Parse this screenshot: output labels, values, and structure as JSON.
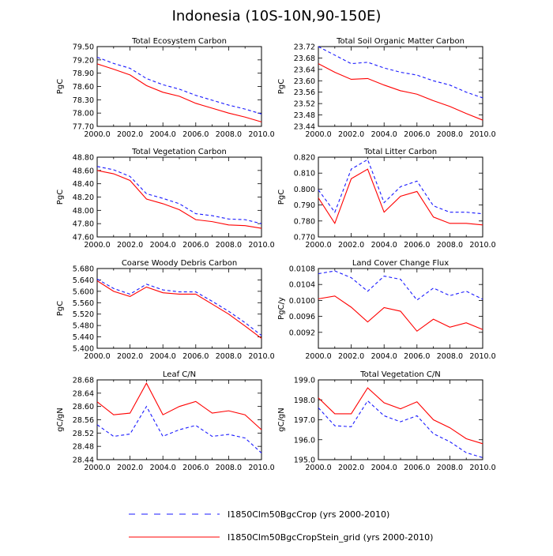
{
  "main_title": "Indonesia (10S-10N,90-150E)",
  "legend": [
    {
      "label": "I1850Clm50BgcCrop (yrs 2000-2010)",
      "color": "#1a1aff",
      "style": "dashed"
    },
    {
      "label": "I1850Clm50BgcCropStein_grid (yrs 2000-2010)",
      "color": "#ff0000",
      "style": "solid"
    }
  ],
  "chart_data": [
    {
      "type": "line",
      "title": "Total Ecosystem Carbon",
      "ylabel": "PgC",
      "x": [
        2000,
        2001,
        2002,
        2003,
        2004,
        2005,
        2006,
        2007,
        2008,
        2009,
        2010
      ],
      "xticks": [
        "2000.0",
        "2002.0",
        "2004.0",
        "2006.0",
        "2008.0",
        "2010.0"
      ],
      "ylim": [
        77.7,
        79.5
      ],
      "yticks": [
        "77.70",
        "78.00",
        "78.30",
        "78.60",
        "78.90",
        "79.20",
        "79.50"
      ],
      "series": [
        {
          "name": "I1850Clm50BgcCrop (yrs 2000-2010)",
          "color": "#1a1aff",
          "dash": true,
          "values": [
            79.26,
            79.12,
            79.01,
            78.78,
            78.64,
            78.54,
            78.4,
            78.29,
            78.18,
            78.09,
            77.98
          ]
        },
        {
          "name": "I1850Clm50BgcCropStein_grid (yrs 2000-2010)",
          "color": "#ff0000",
          "dash": false,
          "values": [
            79.11,
            78.99,
            78.86,
            78.62,
            78.47,
            78.38,
            78.22,
            78.11,
            78.0,
            77.91,
            77.8
          ]
        }
      ]
    },
    {
      "type": "line",
      "title": "Total Soil Organic Matter Carbon",
      "ylabel": "PgC",
      "x": [
        2000,
        2001,
        2002,
        2003,
        2004,
        2005,
        2006,
        2007,
        2008,
        2009,
        2010
      ],
      "xticks": [
        "2000.0",
        "2002.0",
        "2004.0",
        "2006.0",
        "2008.0",
        "2010.0"
      ],
      "ylim": [
        23.44,
        23.72
      ],
      "yticks": [
        "23.44",
        "23.48",
        "23.52",
        "23.56",
        "23.60",
        "23.64",
        "23.68",
        "23.72"
      ],
      "series": [
        {
          "name": "I1850Clm50BgcCrop (yrs 2000-2010)",
          "color": "#1a1aff",
          "dash": true,
          "values": [
            23.72,
            23.69,
            23.66,
            23.665,
            23.645,
            23.63,
            23.62,
            23.6,
            23.585,
            23.56,
            23.54
          ]
        },
        {
          "name": "I1850Clm50BgcCropStein_grid (yrs 2000-2010)",
          "color": "#ff0000",
          "dash": false,
          "values": [
            23.66,
            23.63,
            23.605,
            23.608,
            23.585,
            23.565,
            23.553,
            23.53,
            23.51,
            23.485,
            23.462
          ]
        }
      ]
    },
    {
      "type": "line",
      "title": "Total Vegetation Carbon",
      "ylabel": "PgC",
      "x": [
        2000,
        2001,
        2002,
        2003,
        2004,
        2005,
        2006,
        2007,
        2008,
        2009,
        2010
      ],
      "xticks": [
        "2000.0",
        "2002.0",
        "2004.0",
        "2006.0",
        "2008.0",
        "2010.0"
      ],
      "ylim": [
        47.6,
        48.8
      ],
      "yticks": [
        "47.60",
        "47.80",
        "48.00",
        "48.20",
        "48.40",
        "48.60",
        "48.80"
      ],
      "series": [
        {
          "name": "I1850Clm50BgcCrop (yrs 2000-2010)",
          "color": "#1a1aff",
          "dash": true,
          "values": [
            48.66,
            48.61,
            48.51,
            48.25,
            48.18,
            48.1,
            47.95,
            47.92,
            47.87,
            47.86,
            47.8
          ]
        },
        {
          "name": "I1850Clm50BgcCropStein_grid (yrs 2000-2010)",
          "color": "#ff0000",
          "dash": false,
          "values": [
            48.6,
            48.55,
            48.45,
            48.17,
            48.1,
            48.01,
            47.86,
            47.83,
            47.78,
            47.77,
            47.73
          ]
        }
      ]
    },
    {
      "type": "line",
      "title": "Total Litter Carbon",
      "ylabel": "PgC",
      "x": [
        2000,
        2001,
        2002,
        2003,
        2004,
        2005,
        2006,
        2007,
        2008,
        2009,
        2010
      ],
      "xticks": [
        "2000.0",
        "2002.0",
        "2004.0",
        "2006.0",
        "2008.0",
        "2010.0"
      ],
      "ylim": [
        0.77,
        0.82
      ],
      "yticks": [
        "0.770",
        "0.780",
        "0.790",
        "0.800",
        "0.810",
        "0.820"
      ],
      "series": [
        {
          "name": "I1850Clm50BgcCrop (yrs 2000-2010)",
          "color": "#1a1aff",
          "dash": true,
          "values": [
            0.7995,
            0.7855,
            0.8125,
            0.8185,
            0.7915,
            0.8015,
            0.805,
            0.7895,
            0.7855,
            0.7855,
            0.7845
          ]
        },
        {
          "name": "I1850Clm50BgcCropStein_grid (yrs 2000-2010)",
          "color": "#ff0000",
          "dash": false,
          "values": [
            0.7945,
            0.7785,
            0.8065,
            0.8125,
            0.7855,
            0.7955,
            0.7985,
            0.7825,
            0.7785,
            0.7785,
            0.7775
          ]
        }
      ]
    },
    {
      "type": "line",
      "title": "Coarse Woody Debris Carbon",
      "ylabel": "PgC",
      "x": [
        2000,
        2001,
        2002,
        2003,
        2004,
        2005,
        2006,
        2007,
        2008,
        2009,
        2010
      ],
      "xticks": [
        "2000.0",
        "2002.0",
        "2004.0",
        "2006.0",
        "2008.0",
        "2010.0"
      ],
      "ylim": [
        5.4,
        5.68
      ],
      "yticks": [
        "5.400",
        "5.440",
        "5.480",
        "5.520",
        "5.560",
        "5.600",
        "5.640",
        "5.680"
      ],
      "series": [
        {
          "name": "I1850Clm50BgcCrop (yrs 2000-2010)",
          "color": "#1a1aff",
          "dash": true,
          "values": [
            5.643,
            5.61,
            5.59,
            5.625,
            5.605,
            5.598,
            5.598,
            5.565,
            5.53,
            5.49,
            5.445
          ]
        },
        {
          "name": "I1850Clm50BgcCropStein_grid (yrs 2000-2010)",
          "color": "#ff0000",
          "dash": false,
          "values": [
            5.637,
            5.6,
            5.582,
            5.615,
            5.595,
            5.59,
            5.59,
            5.555,
            5.52,
            5.478,
            5.435
          ]
        }
      ]
    },
    {
      "type": "line",
      "title": "Land Cover Change Flux",
      "ylabel": "PgC/y",
      "x": [
        2000,
        2001,
        2002,
        2003,
        2004,
        2005,
        2006,
        2007,
        2008,
        2009,
        2010
      ],
      "xticks": [
        "2000.0",
        "2002.0",
        "2004.0",
        "2006.0",
        "2008.0",
        "2010.0"
      ],
      "ylim": [
        0.0088,
        0.0108
      ],
      "yticks": [
        "0.0092",
        "0.0096",
        "0.0100",
        "0.0104",
        "0.0108"
      ],
      "series": [
        {
          "name": "I1850Clm50BgcCrop (yrs 2000-2010)",
          "color": "#1a1aff",
          "dash": true,
          "values": [
            0.01067,
            0.01074,
            0.01057,
            0.01023,
            0.01061,
            0.01053,
            0.01001,
            0.01031,
            0.01012,
            0.01023,
            0.01003
          ]
        },
        {
          "name": "I1850Clm50BgcCropStein_grid (yrs 2000-2010)",
          "color": "#ff0000",
          "dash": false,
          "values": [
            0.01004,
            0.01011,
            0.00983,
            0.00946,
            0.00982,
            0.00973,
            0.00923,
            0.00953,
            0.00933,
            0.00944,
            0.00927
          ]
        }
      ]
    },
    {
      "type": "line",
      "title": "Leaf C/N",
      "ylabel": "gC/gN",
      "x": [
        2000,
        2001,
        2002,
        2003,
        2004,
        2005,
        2006,
        2007,
        2008,
        2009,
        2010
      ],
      "xticks": [
        "2000.0",
        "2002.0",
        "2004.0",
        "2006.0",
        "2008.0",
        "2010.0"
      ],
      "ylim": [
        28.44,
        28.68
      ],
      "yticks": [
        "28.44",
        "28.48",
        "28.52",
        "28.56",
        "28.60",
        "28.64",
        "28.68"
      ],
      "series": [
        {
          "name": "I1850Clm50BgcCrop (yrs 2000-2010)",
          "color": "#1a1aff",
          "dash": true,
          "values": [
            28.545,
            28.51,
            28.517,
            28.6,
            28.51,
            28.53,
            28.543,
            28.51,
            28.516,
            28.505,
            28.46
          ]
        },
        {
          "name": "I1850Clm50BgcCropStein_grid (yrs 2000-2010)",
          "color": "#ff0000",
          "dash": false,
          "values": [
            28.614,
            28.575,
            28.58,
            28.67,
            28.575,
            28.6,
            28.615,
            28.58,
            28.587,
            28.575,
            28.53
          ]
        }
      ]
    },
    {
      "type": "line",
      "title": "Total Vegetation C/N",
      "ylabel": "gC/gN",
      "x": [
        2000,
        2001,
        2002,
        2003,
        2004,
        2005,
        2006,
        2007,
        2008,
        2009,
        2010
      ],
      "xticks": [
        "2000.0",
        "2002.0",
        "2004.0",
        "2006.0",
        "2008.0",
        "2010.0"
      ],
      "ylim": [
        195.0,
        199.0
      ],
      "yticks": [
        "195.0",
        "196.0",
        "197.0",
        "198.0",
        "199.0"
      ],
      "series": [
        {
          "name": "I1850Clm50BgcCrop (yrs 2000-2010)",
          "color": "#1a1aff",
          "dash": true,
          "values": [
            197.6,
            196.7,
            196.65,
            197.95,
            197.2,
            196.9,
            197.2,
            196.3,
            195.9,
            195.35,
            195.1
          ]
        },
        {
          "name": "I1850Clm50BgcCropStein_grid (yrs 2000-2010)",
          "color": "#ff0000",
          "dash": false,
          "values": [
            198.1,
            197.3,
            197.3,
            198.6,
            197.85,
            197.55,
            197.9,
            197.0,
            196.6,
            196.05,
            195.8
          ]
        }
      ]
    }
  ]
}
